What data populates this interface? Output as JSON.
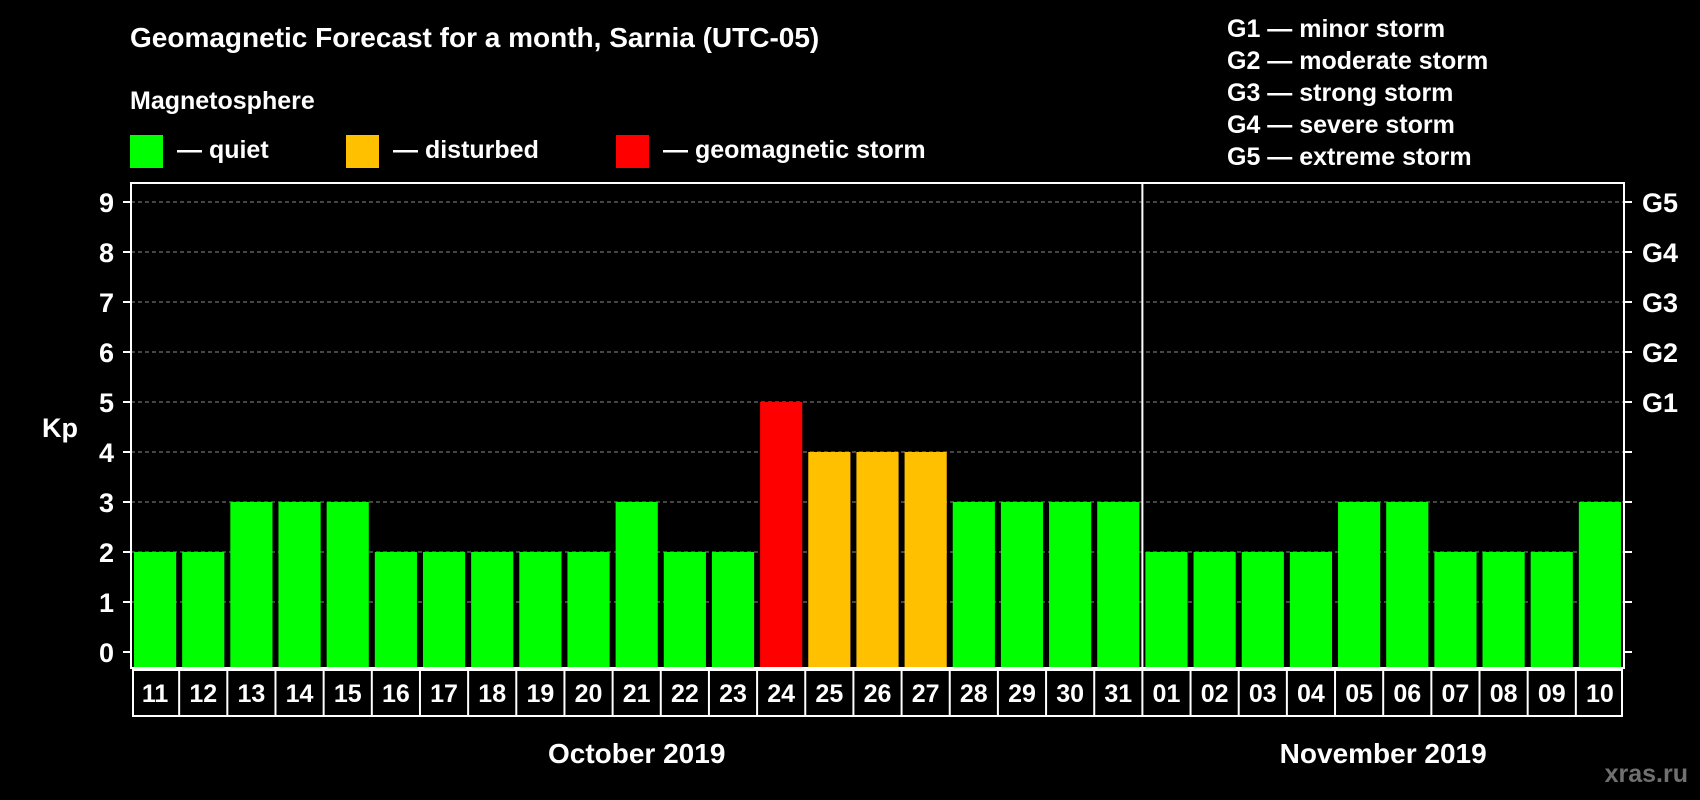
{
  "colors": {
    "background": "#000000",
    "quiet": "#00ff00",
    "disturbed": "#ffc000",
    "storm": "#ff0000",
    "text": "#ffffff",
    "watermark": "#707070"
  },
  "header": {
    "title": "Geomagnetic Forecast for a month, Sarnia (UTC-05)",
    "subtitle": "Magnetosphere"
  },
  "legend": [
    {
      "label": "— quiet",
      "color": "#00ff00"
    },
    {
      "label": "— disturbed",
      "color": "#ffc000"
    },
    {
      "label": "— geomagnetic storm",
      "color": "#ff0000"
    }
  ],
  "storm_legend": [
    "G1 — minor storm",
    "G2 — moderate storm",
    "G3 — strong storm",
    "G4 — severe storm",
    "G5 — extreme storm"
  ],
  "watermark": "xras.ru",
  "chart_data": {
    "type": "bar",
    "ylabel": "Kp",
    "ylim": [
      0,
      9
    ],
    "yticks": [
      0,
      1,
      2,
      3,
      4,
      5,
      6,
      7,
      8,
      9
    ],
    "right_ticks": [
      {
        "value": 5,
        "label": "G1"
      },
      {
        "value": 6,
        "label": "G2"
      },
      {
        "value": 7,
        "label": "G3"
      },
      {
        "value": 8,
        "label": "G4"
      },
      {
        "value": 9,
        "label": "G5"
      }
    ],
    "categories": [
      "11",
      "12",
      "13",
      "14",
      "15",
      "16",
      "17",
      "18",
      "19",
      "20",
      "21",
      "22",
      "23",
      "24",
      "25",
      "26",
      "27",
      "28",
      "29",
      "30",
      "31",
      "01",
      "02",
      "03",
      "04",
      "05",
      "06",
      "07",
      "08",
      "09",
      "10"
    ],
    "values": [
      2,
      2,
      3,
      3,
      3,
      2,
      2,
      2,
      2,
      2,
      3,
      2,
      2,
      5,
      4,
      4,
      4,
      3,
      3,
      3,
      3,
      2,
      2,
      2,
      2,
      3,
      3,
      2,
      2,
      2,
      3
    ],
    "status": [
      "quiet",
      "quiet",
      "quiet",
      "quiet",
      "quiet",
      "quiet",
      "quiet",
      "quiet",
      "quiet",
      "quiet",
      "quiet",
      "quiet",
      "quiet",
      "storm",
      "disturbed",
      "disturbed",
      "disturbed",
      "quiet",
      "quiet",
      "quiet",
      "quiet",
      "quiet",
      "quiet",
      "quiet",
      "quiet",
      "quiet",
      "quiet",
      "quiet",
      "quiet",
      "quiet",
      "quiet"
    ],
    "months": [
      {
        "label": "October 2019",
        "start": 0,
        "count": 21
      },
      {
        "label": "November 2019",
        "start": 21,
        "count": 10
      }
    ],
    "grid": true
  }
}
